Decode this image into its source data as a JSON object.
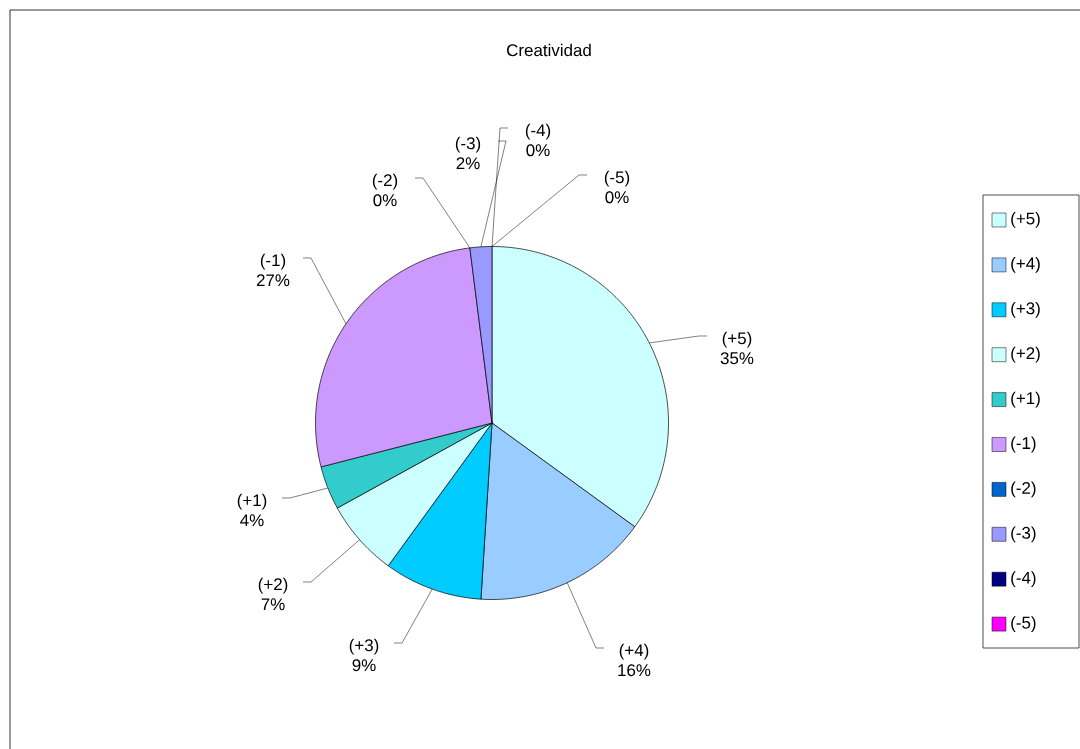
{
  "chart_data": {
    "type": "pie",
    "title": "Creatividad",
    "categories": [
      "(+5)",
      "(+4)",
      "(+3)",
      "(+2)",
      "(+1)",
      "(-1)",
      "(-2)",
      "(-3)",
      "(-4)",
      "(-5)"
    ],
    "values": [
      35,
      16,
      9,
      7,
      4,
      27,
      0,
      2,
      0,
      0
    ],
    "value_labels": [
      "35%",
      "16%",
      "9%",
      "7%",
      "4%",
      "27%",
      "0%",
      "2%",
      "0%",
      "0%"
    ],
    "colors": [
      "#ccffff",
      "#99ccff",
      "#00ccff",
      "#ccffff",
      "#33cccc",
      "#cc99ff",
      "#0066cc",
      "#9999ff",
      "#000080",
      "#ff00ff"
    ],
    "legend": "right"
  }
}
